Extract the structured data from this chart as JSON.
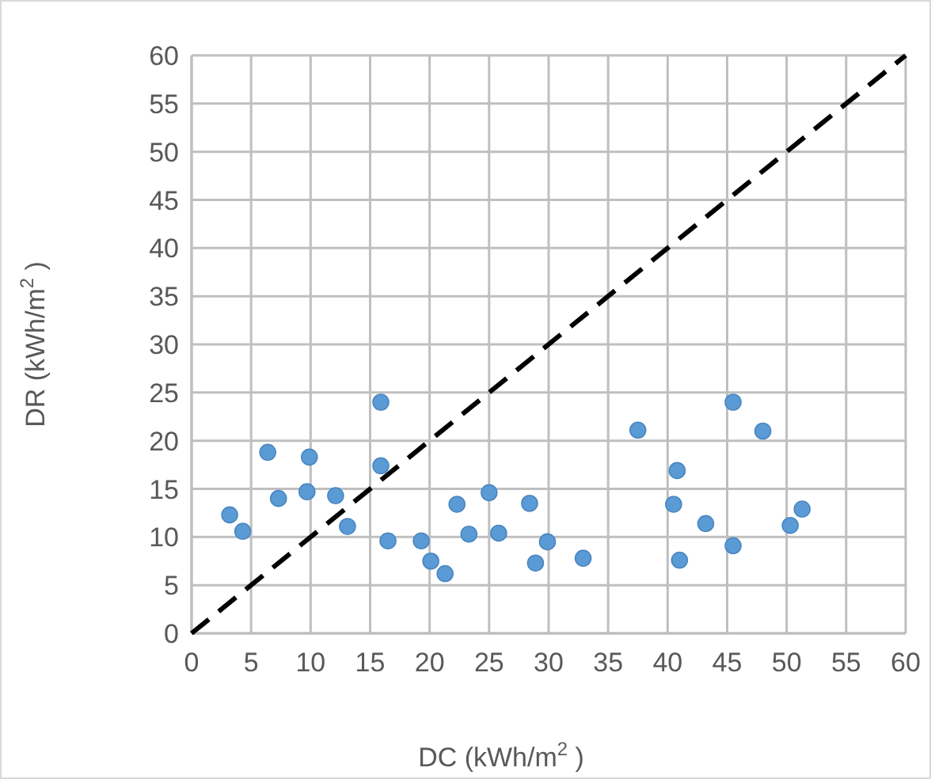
{
  "chart_data": {
    "type": "scatter",
    "xlabel": "DC (kWh/m$^{2}$ )",
    "ylabel": "DR (kWh/m$^{2}$ )",
    "xlim": [
      0,
      60
    ],
    "ylim": [
      0,
      60
    ],
    "xticks": [
      0,
      5,
      10,
      15,
      20,
      25,
      30,
      35,
      40,
      45,
      50,
      55,
      60
    ],
    "yticks": [
      0,
      5,
      10,
      15,
      20,
      25,
      30,
      35,
      40,
      45,
      50,
      55,
      60
    ],
    "grid": true,
    "series": [
      {
        "color": "#5b9bd5",
        "marker": "circle",
        "x": [
          3.2,
          4.3,
          6.4,
          7.3,
          9.7,
          9.9,
          12.1,
          13.1,
          15.9,
          15.9,
          16.5,
          19.3,
          20.1,
          21.3,
          22.3,
          23.3,
          25,
          25.8,
          28.4,
          28.9,
          29.9,
          32.9,
          37.5,
          40.5,
          40.8,
          41,
          43.2,
          45.5,
          45.5,
          48,
          50.3,
          51.3
        ],
        "values": [
          12.3,
          10.6,
          18.8,
          14,
          14.7,
          18.3,
          14.3,
          11.1,
          24,
          17.4,
          9.6,
          9.6,
          7.5,
          6.2,
          13.4,
          10.3,
          14.6,
          10.4,
          13.5,
          7.3,
          9.5,
          7.8,
          21.1,
          13.4,
          16.9,
          7.6,
          11.4,
          24,
          9.1,
          21,
          11.2,
          12.9
        ]
      },
      {
        "type": "line",
        "color": "#000000",
        "line_style": "dashed",
        "marker": "none",
        "x": [
          0,
          60
        ],
        "values": [
          0,
          60
        ]
      }
    ]
  }
}
